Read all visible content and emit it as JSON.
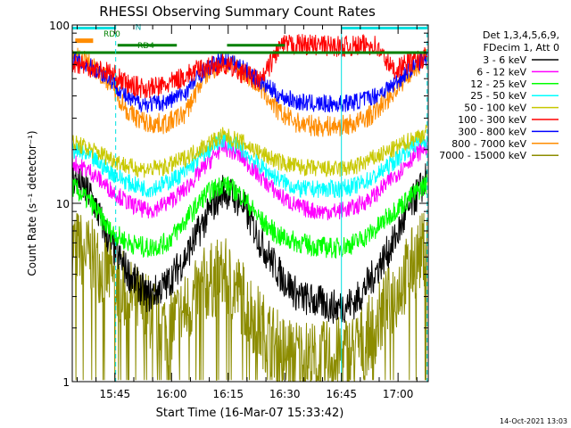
{
  "chart_data": {
    "type": "line",
    "title": "RHESSI Observing Summary Count Rates",
    "xlabel": "Start Time (16-Mar-07 15:33:42)",
    "ylabel": "Count Rate (s⁻¹ detector⁻¹)",
    "xlim": [
      "15:33:42",
      "17:08:00"
    ],
    "ylim": [
      1,
      100
    ],
    "yscale": "log",
    "x_ticks": [
      "15:45",
      "16:00",
      "16:15",
      "16:30",
      "16:45",
      "17:00"
    ],
    "y_ticks": [
      "1",
      "10",
      "100"
    ],
    "legend_header": [
      "Det 1,3,4,5,6,9,",
      "FDecim 1, Att 0"
    ],
    "legend_position": "right",
    "footer": "14-Oct-2021 13:03",
    "annotations": [
      "RD0",
      "N",
      "RD4"
    ],
    "series": [
      {
        "name": "3 - 6 keV",
        "color": "#000000",
        "values": [
          [
            0,
            14
          ],
          [
            5,
            11
          ],
          [
            10,
            6
          ],
          [
            15,
            4
          ],
          [
            20,
            3
          ],
          [
            25,
            3.5
          ],
          [
            30,
            5
          ],
          [
            35,
            8
          ],
          [
            40,
            12
          ],
          [
            45,
            10
          ],
          [
            50,
            6
          ],
          [
            55,
            4
          ],
          [
            60,
            3
          ],
          [
            65,
            2.8
          ],
          [
            70,
            2.6
          ],
          [
            75,
            2.8
          ],
          [
            80,
            4
          ],
          [
            85,
            6
          ],
          [
            90,
            10
          ],
          [
            94,
            14
          ]
        ]
      },
      {
        "name": "6 - 12 keV",
        "color": "#ff00ff",
        "values": [
          [
            0,
            17
          ],
          [
            5,
            15
          ],
          [
            10,
            12
          ],
          [
            15,
            10
          ],
          [
            20,
            9
          ],
          [
            25,
            10
          ],
          [
            30,
            12
          ],
          [
            35,
            16
          ],
          [
            40,
            21
          ],
          [
            45,
            18
          ],
          [
            50,
            14
          ],
          [
            55,
            11
          ],
          [
            60,
            9.5
          ],
          [
            65,
            9
          ],
          [
            70,
            9
          ],
          [
            75,
            9.5
          ],
          [
            80,
            11
          ],
          [
            85,
            14
          ],
          [
            90,
            18
          ],
          [
            94,
            21
          ]
        ]
      },
      {
        "name": "12 - 25 keV",
        "color": "#00ff00",
        "values": [
          [
            0,
            12.5
          ],
          [
            5,
            10
          ],
          [
            10,
            7
          ],
          [
            15,
            6
          ],
          [
            20,
            5.6
          ],
          [
            25,
            6
          ],
          [
            30,
            8
          ],
          [
            35,
            11
          ],
          [
            40,
            13
          ],
          [
            45,
            11
          ],
          [
            50,
            8
          ],
          [
            55,
            6.5
          ],
          [
            60,
            6
          ],
          [
            65,
            5.7
          ],
          [
            70,
            5.6
          ],
          [
            75,
            6
          ],
          [
            80,
            7
          ],
          [
            85,
            9
          ],
          [
            90,
            11
          ],
          [
            94,
            13
          ]
        ]
      },
      {
        "name": "25 - 50 keV",
        "color": "#00ffff",
        "values": [
          [
            0,
            20
          ],
          [
            5,
            18
          ],
          [
            10,
            15
          ],
          [
            15,
            13
          ],
          [
            20,
            12
          ],
          [
            25,
            13
          ],
          [
            30,
            15
          ],
          [
            35,
            19
          ],
          [
            40,
            23
          ],
          [
            45,
            20
          ],
          [
            50,
            16
          ],
          [
            55,
            13.5
          ],
          [
            60,
            12
          ],
          [
            65,
            12
          ],
          [
            70,
            12
          ],
          [
            75,
            12.5
          ],
          [
            80,
            14
          ],
          [
            85,
            17
          ],
          [
            90,
            21
          ],
          [
            94,
            23
          ]
        ]
      },
      {
        "name": "50 - 100 keV",
        "color": "#c8c800",
        "values": [
          [
            0,
            22
          ],
          [
            5,
            20
          ],
          [
            10,
            18
          ],
          [
            15,
            16
          ],
          [
            20,
            15.5
          ],
          [
            25,
            16
          ],
          [
            30,
            18
          ],
          [
            35,
            21
          ],
          [
            40,
            24
          ],
          [
            45,
            22
          ],
          [
            50,
            19
          ],
          [
            55,
            17
          ],
          [
            60,
            16
          ],
          [
            65,
            15.6
          ],
          [
            70,
            15.5
          ],
          [
            75,
            16
          ],
          [
            80,
            18
          ],
          [
            85,
            20
          ],
          [
            90,
            23
          ],
          [
            94,
            25
          ]
        ]
      },
      {
        "name": "100 - 300 keV",
        "color": "#ff0000",
        "values": [
          [
            0,
            62
          ],
          [
            5,
            58
          ],
          [
            10,
            54
          ],
          [
            15,
            46
          ],
          [
            20,
            44
          ],
          [
            25,
            46
          ],
          [
            30,
            52
          ],
          [
            35,
            58
          ],
          [
            40,
            60
          ],
          [
            45,
            54
          ],
          [
            50,
            48
          ],
          [
            55,
            76
          ],
          [
            60,
            78
          ],
          [
            65,
            77
          ],
          [
            70,
            76
          ],
          [
            75,
            76
          ],
          [
            80,
            78
          ],
          [
            85,
            56
          ],
          [
            90,
            62
          ],
          [
            94,
            66
          ]
        ]
      },
      {
        "name": "300 - 800 keV",
        "color": "#0000ff",
        "values": [
          [
            0,
            64
          ],
          [
            5,
            58
          ],
          [
            10,
            50
          ],
          [
            15,
            38
          ],
          [
            20,
            36
          ],
          [
            25,
            37
          ],
          [
            30,
            42
          ],
          [
            35,
            56
          ],
          [
            40,
            64
          ],
          [
            45,
            58
          ],
          [
            50,
            48
          ],
          [
            55,
            40
          ],
          [
            60,
            37
          ],
          [
            65,
            36
          ],
          [
            70,
            36
          ],
          [
            75,
            37
          ],
          [
            80,
            40
          ],
          [
            85,
            46
          ],
          [
            90,
            58
          ],
          [
            94,
            66
          ]
        ]
      },
      {
        "name": "800 - 7000 keV",
        "color": "#ff8c00",
        "values": [
          [
            0,
            68
          ],
          [
            5,
            60
          ],
          [
            10,
            48
          ],
          [
            15,
            32
          ],
          [
            20,
            28
          ],
          [
            25,
            28
          ],
          [
            30,
            32
          ],
          [
            35,
            52
          ],
          [
            40,
            62
          ],
          [
            45,
            56
          ],
          [
            50,
            44
          ],
          [
            55,
            32
          ],
          [
            60,
            28
          ],
          [
            65,
            27
          ],
          [
            70,
            27
          ],
          [
            75,
            28
          ],
          [
            80,
            32
          ],
          [
            85,
            42
          ],
          [
            90,
            56
          ],
          [
            94,
            66
          ]
        ]
      },
      {
        "name": "7000 - 15000 keV",
        "color": "#8c8c00",
        "values": [
          [
            0,
            6
          ],
          [
            5,
            5
          ],
          [
            10,
            4
          ],
          [
            15,
            3
          ],
          [
            20,
            2.5
          ],
          [
            25,
            2
          ],
          [
            30,
            2.5
          ],
          [
            35,
            3.5
          ],
          [
            40,
            4
          ],
          [
            45,
            3
          ],
          [
            50,
            2
          ],
          [
            55,
            1.5
          ],
          [
            60,
            1.4
          ],
          [
            65,
            1.3
          ],
          [
            70,
            1.4
          ],
          [
            75,
            1.5
          ],
          [
            80,
            2
          ],
          [
            85,
            3
          ],
          [
            90,
            4.5
          ],
          [
            94,
            6
          ]
        ]
      }
    ]
  }
}
